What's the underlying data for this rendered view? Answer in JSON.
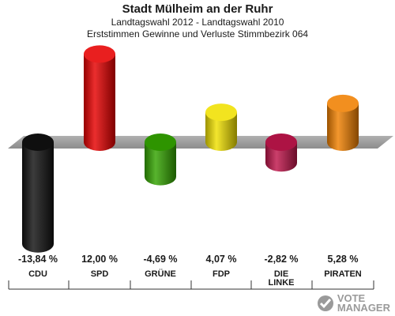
{
  "header": {
    "title": "Stadt Mülheim an der Ruhr",
    "subtitle1": "Landtagswahl 2012 - Landtagswahl 2010",
    "subtitle2": "Erststimmen Gewinne und Verluste Stimmbezirk 064"
  },
  "chart_data": {
    "type": "bar",
    "title": "Stadt Mülheim an der Ruhr",
    "subtitle": "Erststimmen Gewinne und Verluste Stimmbezirk 064",
    "categories": [
      "CDU",
      "SPD",
      "GRÜNE",
      "FDP",
      "DIE LINKE",
      "PIRATEN"
    ],
    "values": [
      -13.84,
      12.0,
      -4.69,
      4.07,
      -2.82,
      5.28
    ],
    "value_labels": [
      "-13,84 %",
      "12,00 %",
      "-4,69 %",
      "4,07 %",
      "-2,82 %",
      "5,28 %"
    ],
    "category_labels": [
      [
        "CDU"
      ],
      [
        "SPD"
      ],
      [
        "GRÜNE"
      ],
      [
        "FDP"
      ],
      [
        "DIE",
        "LINKE"
      ],
      [
        "PIRATEN"
      ]
    ],
    "colors": [
      "#111111",
      "#e60000",
      "#33a400",
      "#f0e000",
      "#c0154b",
      "#f08000"
    ],
    "baseline": 0,
    "ylim": [
      -15,
      13
    ],
    "grid": false,
    "legend": "none"
  },
  "logo": {
    "line1": "VOTE",
    "line2": "MANAGER"
  }
}
